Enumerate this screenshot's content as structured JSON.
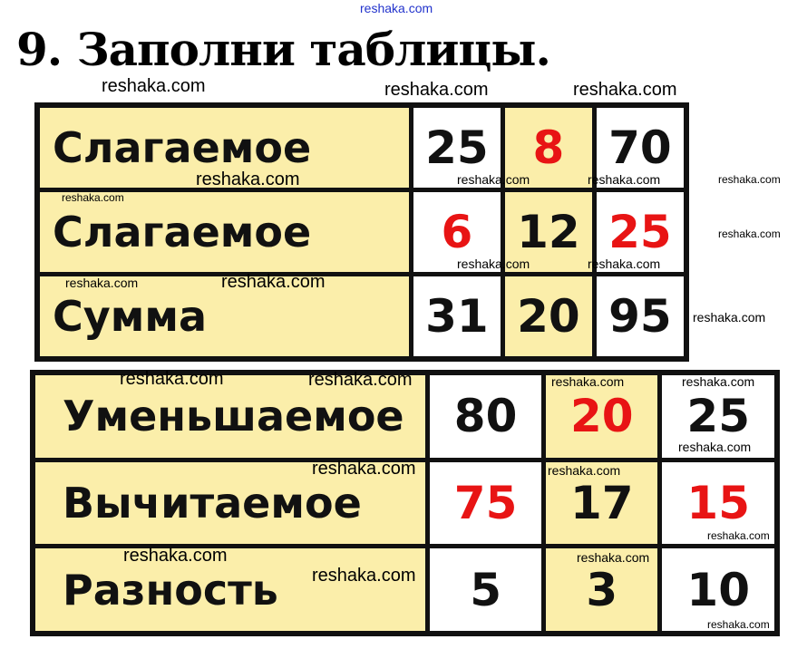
{
  "title": "9. Заполни таблицы.",
  "watermark": "reshaka.com",
  "colors": {
    "label_bg": "#fbeeaa",
    "answer": "#e81414",
    "border": "#111111"
  },
  "table1": {
    "rows": [
      {
        "label": "Слагаемое",
        "cells": [
          {
            "v": "25",
            "answer": false
          },
          {
            "v": "8",
            "answer": true
          },
          {
            "v": "70",
            "answer": false
          }
        ]
      },
      {
        "label": "Слагаемое",
        "cells": [
          {
            "v": "6",
            "answer": true
          },
          {
            "v": "12",
            "answer": false
          },
          {
            "v": "25",
            "answer": true
          }
        ]
      },
      {
        "label": "Сумма",
        "cells": [
          {
            "v": "31",
            "answer": false
          },
          {
            "v": "20",
            "answer": false
          },
          {
            "v": "95",
            "answer": false
          }
        ]
      }
    ]
  },
  "table2": {
    "rows": [
      {
        "label": "Уменьшаемое",
        "cells": [
          {
            "v": "80",
            "answer": false
          },
          {
            "v": "20",
            "answer": true
          },
          {
            "v": "25",
            "answer": false
          }
        ]
      },
      {
        "label": "Вычитаемое",
        "cells": [
          {
            "v": "75",
            "answer": true
          },
          {
            "v": "17",
            "answer": false
          },
          {
            "v": "15",
            "answer": true
          }
        ]
      },
      {
        "label": "Разность",
        "cells": [
          {
            "v": "5",
            "answer": false
          },
          {
            "v": "3",
            "answer": false
          },
          {
            "v": "10",
            "answer": false
          }
        ]
      }
    ]
  }
}
